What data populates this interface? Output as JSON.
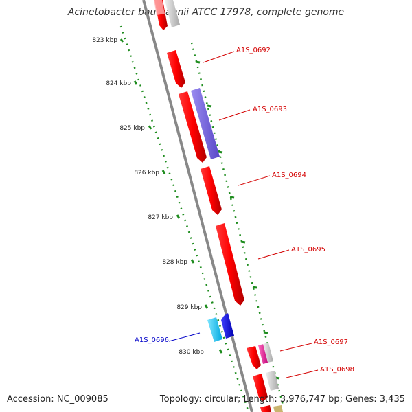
{
  "title": "Acinetobacter baumannii ATCC 17978, complete genome",
  "footer": {
    "accession": "Accession: NC_009085",
    "stats": "Topology: circular; Length: 3,976,747 bp; Genes: 3,435"
  },
  "scale_labels": [
    "823 kbp",
    "824 kbp",
    "825 kbp",
    "826 kbp",
    "827 kbp",
    "828 kbp",
    "829 kbp",
    "830 kbp"
  ],
  "colors": {
    "forward_gene": "#ff0000",
    "reverse_gene_label": "#0000c8",
    "forward_label": "#d40000",
    "backbone": "#808080",
    "tick": "#228b22",
    "purple_feature": "#7b68ee",
    "cyan_feature": "#00bfff",
    "blue_feature": "#0000ff",
    "magenta_feature": "#ff1493",
    "grey_feature": "#c8c8c8"
  },
  "gene_labels": [
    {
      "text": "A1S_0692",
      "strand": "forward"
    },
    {
      "text": "A1S_0693",
      "strand": "forward"
    },
    {
      "text": "A1S_0694",
      "strand": "forward"
    },
    {
      "text": "A1S_0695",
      "strand": "forward"
    },
    {
      "text": "A1S_0696",
      "strand": "reverse"
    },
    {
      "text": "A1S_0697",
      "strand": "forward"
    },
    {
      "text": "A1S_0698",
      "strand": "forward"
    }
  ]
}
